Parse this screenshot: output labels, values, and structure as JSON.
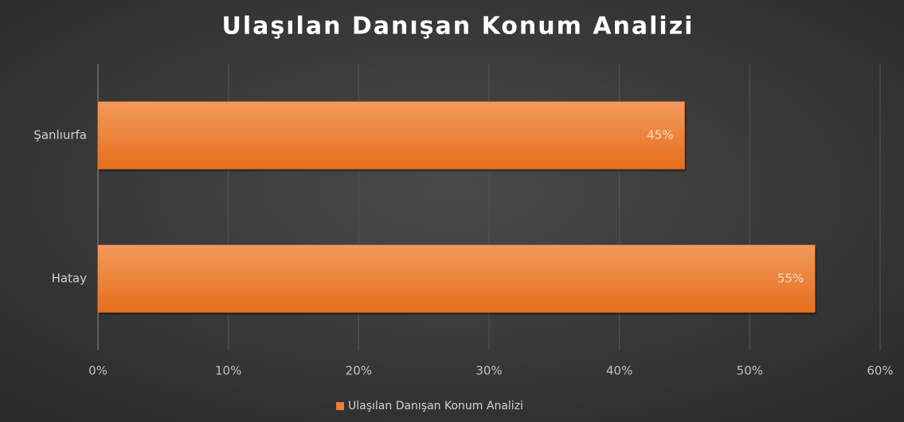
{
  "chart_data": {
    "type": "bar",
    "orientation": "horizontal",
    "title": "Ulaşılan Danışan Konum Analizi",
    "categories": [
      "Şanlıurfa",
      "Hatay"
    ],
    "series": [
      {
        "name": "Ulaşılan Danışan Konum Analizi",
        "color": "#ed7d31",
        "values": [
          45,
          55
        ],
        "value_labels": [
          "45%",
          "55%"
        ]
      }
    ],
    "xlim": [
      0,
      60
    ],
    "xticks": [
      {
        "value": 0,
        "label": "0%"
      },
      {
        "value": 10,
        "label": "10%"
      },
      {
        "value": 20,
        "label": "20%"
      },
      {
        "value": 30,
        "label": "30%"
      },
      {
        "value": 40,
        "label": "40%"
      },
      {
        "value": 50,
        "label": "50%"
      },
      {
        "value": 60,
        "label": "60%"
      }
    ],
    "grid": true,
    "legend": "bottom"
  }
}
